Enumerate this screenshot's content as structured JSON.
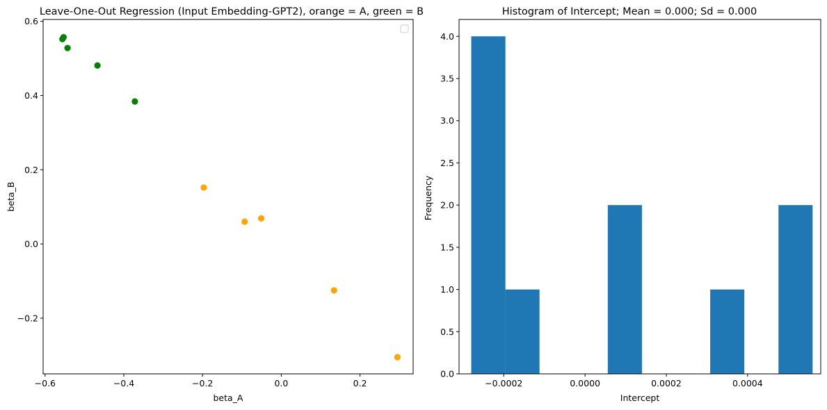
{
  "chart_data": [
    {
      "type": "scatter",
      "title": "Leave-One-Out Regression (Input Embedding-GPT2), orange = A, green = B",
      "xlabel": "beta_A",
      "ylabel": "beta_B",
      "xlim": [
        -0.605,
        0.335
      ],
      "ylim": [
        -0.35,
        0.605
      ],
      "xticks": [
        -0.6,
        -0.4,
        -0.2,
        0.0,
        0.2
      ],
      "xtick_labels": [
        "−0.6",
        "−0.4",
        "−0.2",
        "0.0",
        "0.2"
      ],
      "yticks": [
        -0.2,
        0.0,
        0.2,
        0.4,
        0.6
      ],
      "ytick_labels": [
        "−0.2",
        "0.0",
        "0.2",
        "0.4",
        "0.6"
      ],
      "grid": false,
      "legend": "top-right (empty)",
      "series": [
        {
          "color": "#008000",
          "points": [
            {
              "x": -0.556,
              "y": 0.552
            },
            {
              "x": -0.553,
              "y": 0.557
            },
            {
              "x": -0.543,
              "y": 0.528
            },
            {
              "x": -0.467,
              "y": 0.481
            },
            {
              "x": -0.372,
              "y": 0.384
            }
          ]
        },
        {
          "color": "#FFA500",
          "points": [
            {
              "x": -0.197,
              "y": 0.152
            },
            {
              "x": -0.093,
              "y": 0.06
            },
            {
              "x": -0.051,
              "y": 0.069
            },
            {
              "x": 0.134,
              "y": -0.125
            },
            {
              "x": 0.295,
              "y": -0.305
            }
          ]
        }
      ]
    },
    {
      "type": "bar",
      "title": "Histogram of Intercept; Mean = 0.000; Sd = 0.000",
      "xlabel": "Intercept",
      "ylabel": "Frequency",
      "xlim": [
        -0.00031,
        0.00058
      ],
      "ylim": [
        0,
        4.2
      ],
      "xticks": [
        -0.0002,
        0.0,
        0.0002,
        0.0004
      ],
      "xtick_labels": [
        "−0.0002",
        "0.0000",
        "0.0002",
        "0.0004"
      ],
      "yticks": [
        0,
        0.5,
        1.0,
        1.5,
        2.0,
        2.5,
        3.0,
        3.5,
        4.0
      ],
      "ytick_labels": [
        "0.0",
        "0.5",
        "1.0",
        "1.5",
        "2.0",
        "2.5",
        "3.0",
        "3.5",
        "4.0"
      ],
      "grid": false,
      "color": "#1F77B4",
      "bin_edges": [
        -0.00028,
        -0.000196,
        -0.000112,
        -2.8e-05,
        5.6e-05,
        0.00014,
        0.000224,
        0.000308,
        0.000392,
        0.000476,
        0.00056
      ],
      "values": [
        4,
        1,
        0,
        0,
        2,
        0,
        0,
        1,
        0,
        2
      ]
    }
  ]
}
